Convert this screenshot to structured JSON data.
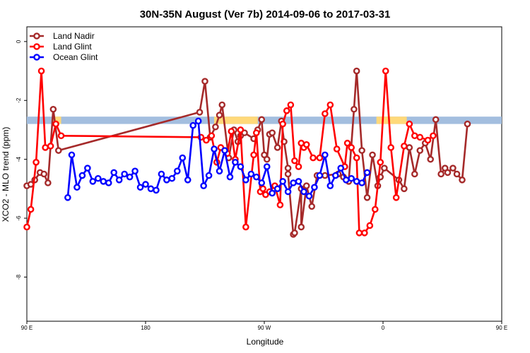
{
  "chart_data": {
    "type": "line",
    "title": "30N-35N August (Ver 7b)   2014-09-06 to 2017-03-31",
    "xlabel": "Longitude",
    "ylabel": "XCO2 - MLO trend (ppm)",
    "xlim": [
      90,
      450
    ],
    "ylim": [
      -9.5,
      0.5
    ],
    "x_ticks": [
      {
        "value": 90,
        "label": "90 E"
      },
      {
        "value": 180,
        "label": "180"
      },
      {
        "value": 270,
        "label": "90 W"
      },
      {
        "value": 360,
        "label": "0"
      },
      {
        "value": 450,
        "label": "90 E"
      },
      {
        "value": 540,
        "label": "180"
      }
    ],
    "y_ticks": [
      {
        "value": 0,
        "label": "0"
      },
      {
        "value": -2,
        "label": "-2"
      },
      {
        "value": -4,
        "label": "-4"
      },
      {
        "value": -6,
        "label": "-6"
      },
      {
        "value": -8,
        "label": "-8"
      }
    ],
    "legend_position": "top-left",
    "land_band": {
      "y_low": -2.8,
      "y_high": -2.55,
      "land_color": "#ffd97a",
      "ocean_color": "#a3bedf",
      "land_segments": [
        [
          110,
          116
        ],
        [
          232,
          265
        ],
        [
          355,
          378
        ],
        [
          487,
          496
        ]
      ]
    },
    "series": [
      {
        "name": "Land Nadir",
        "color": "#a52a2a",
        "x": [
          90,
          93,
          96,
          100,
          103,
          106,
          110,
          114,
          221,
          225,
          229,
          233,
          236,
          238,
          243,
          247,
          250,
          252,
          255,
          262,
          265,
          268,
          270,
          272,
          274,
          276,
          280,
          283,
          285,
          288,
          288,
          292,
          293,
          298,
          298,
          302,
          306,
          310,
          316,
          326,
          330,
          334,
          338,
          340,
          344,
          348,
          352,
          356,
          358,
          361,
          372,
          376,
          380,
          384,
          388,
          392,
          396,
          400,
          404,
          407,
          409,
          413,
          416,
          420,
          424
        ],
        "y": [
          -4.9,
          -4.85,
          -4.7,
          -4.45,
          -4.5,
          -4.8,
          -2.3,
          -3.7,
          -2.4,
          -1.35,
          -3.25,
          -2.9,
          -2.5,
          -2.15,
          -3.95,
          -3.0,
          -3.4,
          -3.2,
          -3.1,
          -3.3,
          -3.0,
          -2.65,
          -3.85,
          -4.0,
          -3.15,
          -3.1,
          -3.6,
          -2.7,
          -3.4,
          -4.3,
          -4.5,
          -6.55,
          -6.5,
          -5.0,
          -6.3,
          -4.9,
          -5.6,
          -4.55,
          -4.55,
          -4.5,
          -4.6,
          -4.75,
          -2.3,
          -1.0,
          -3.7,
          -5.3,
          -3.85,
          -4.9,
          -4.6,
          -4.3,
          -4.7,
          -5.0,
          -3.6,
          -4.5,
          -3.7,
          -3.45,
          -4.0,
          -2.65,
          -4.5,
          -4.3,
          -4.45,
          -4.3,
          -4.5,
          -4.7,
          -2.8
        ]
      },
      {
        "name": "Land Glint",
        "color": "#ff0000",
        "x": [
          90,
          93,
          97,
          101,
          104,
          108,
          112,
          116,
          222,
          226,
          230,
          234,
          237,
          242,
          245,
          248,
          252,
          256,
          262,
          264,
          267,
          269,
          271,
          274,
          278,
          282,
          284,
          287,
          290,
          293,
          296,
          298,
          300,
          302,
          307,
          312,
          316,
          320,
          325,
          331,
          333,
          336,
          340,
          342,
          346,
          350,
          354,
          358,
          362,
          366,
          370,
          376,
          380,
          384,
          388,
          394,
          398
        ],
        "y": [
          -6.3,
          -5.7,
          -4.1,
          -1.0,
          -3.6,
          -3.55,
          -2.8,
          -3.2,
          -3.25,
          -3.35,
          -3.2,
          -4.1,
          -3.6,
          -3.8,
          -3.05,
          -4.0,
          -3.0,
          -6.3,
          -3.85,
          -3.1,
          -5.1,
          -5.0,
          -5.2,
          -5.1,
          -4.9,
          -5.55,
          -2.8,
          -2.35,
          -2.15,
          -4.05,
          -4.25,
          -3.45,
          -3.6,
          -3.5,
          -3.95,
          -3.95,
          -2.45,
          -2.15,
          -3.65,
          -4.25,
          -3.45,
          -3.6,
          -3.95,
          -6.5,
          -6.5,
          -6.25,
          -5.7,
          -4.1,
          -1.0,
          -3.6,
          -5.3,
          -3.55,
          -2.8,
          -3.2,
          -3.25,
          -3.35,
          -3.2
        ]
      },
      {
        "name": "Ocean Glint",
        "color": "#0000ff",
        "x": [
          121,
          124,
          128,
          132,
          136,
          140,
          144,
          148,
          152,
          156,
          160,
          164,
          168,
          172,
          176,
          180,
          184,
          188,
          192,
          196,
          200,
          204,
          208,
          212,
          216,
          220,
          224,
          228,
          232,
          236,
          240,
          244,
          248,
          252,
          256,
          260,
          264,
          268,
          272,
          276,
          280,
          284,
          288,
          292,
          296,
          300,
          304,
          308,
          312,
          316,
          320,
          324,
          328,
          332,
          336,
          340,
          344,
          348
        ],
        "y": [
          -5.3,
          -3.85,
          -4.95,
          -4.55,
          -4.3,
          -4.75,
          -4.65,
          -4.75,
          -4.8,
          -4.45,
          -4.7,
          -4.5,
          -4.6,
          -4.4,
          -4.95,
          -4.85,
          -5.0,
          -5.05,
          -4.5,
          -4.7,
          -4.65,
          -4.4,
          -3.95,
          -4.7,
          -2.85,
          -2.7,
          -4.9,
          -4.55,
          -3.65,
          -4.4,
          -3.7,
          -4.6,
          -4.1,
          -4.25,
          -4.7,
          -4.5,
          -4.6,
          -4.8,
          -4.25,
          -5.15,
          -5.0,
          -4.75,
          -5.1,
          -4.8,
          -4.75,
          -5.1,
          -5.25,
          -4.95,
          -4.55,
          -3.85,
          -4.9,
          -4.55,
          -4.3,
          -4.7,
          -4.65,
          -4.75,
          -4.8,
          -4.45
        ]
      }
    ]
  }
}
